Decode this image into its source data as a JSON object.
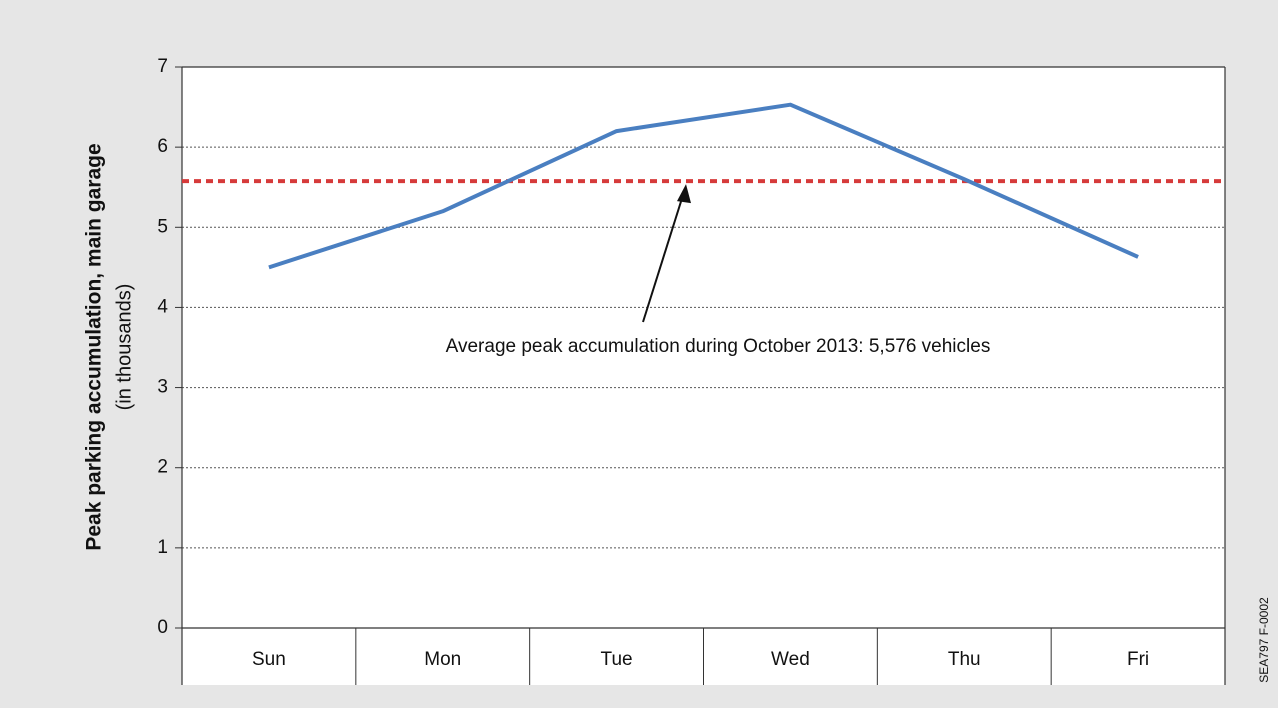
{
  "chart_data": {
    "type": "line",
    "ylabel": "Peak parking accumulation, main garage",
    "ylabel_sub": "(in thousands)",
    "categories": [
      "Sun",
      "Mon",
      "Tue",
      "Wed",
      "Thu",
      "Fri"
    ],
    "series": [
      {
        "name": "Peak accumulation",
        "color": "#4a7fc1",
        "values": [
          4.5,
          5.2,
          6.2,
          6.53,
          5.6,
          4.63
        ]
      }
    ],
    "ylim": [
      0,
      7
    ],
    "yticks": [
      0,
      1,
      2,
      3,
      4,
      5,
      6,
      7
    ],
    "grid": true,
    "reference_line": {
      "value": 5.576,
      "color": "#d63a3a"
    },
    "annotation": "Average peak accumulation during October 2013: 5,576 vehicles",
    "credit": "SEA797 F-0002"
  }
}
